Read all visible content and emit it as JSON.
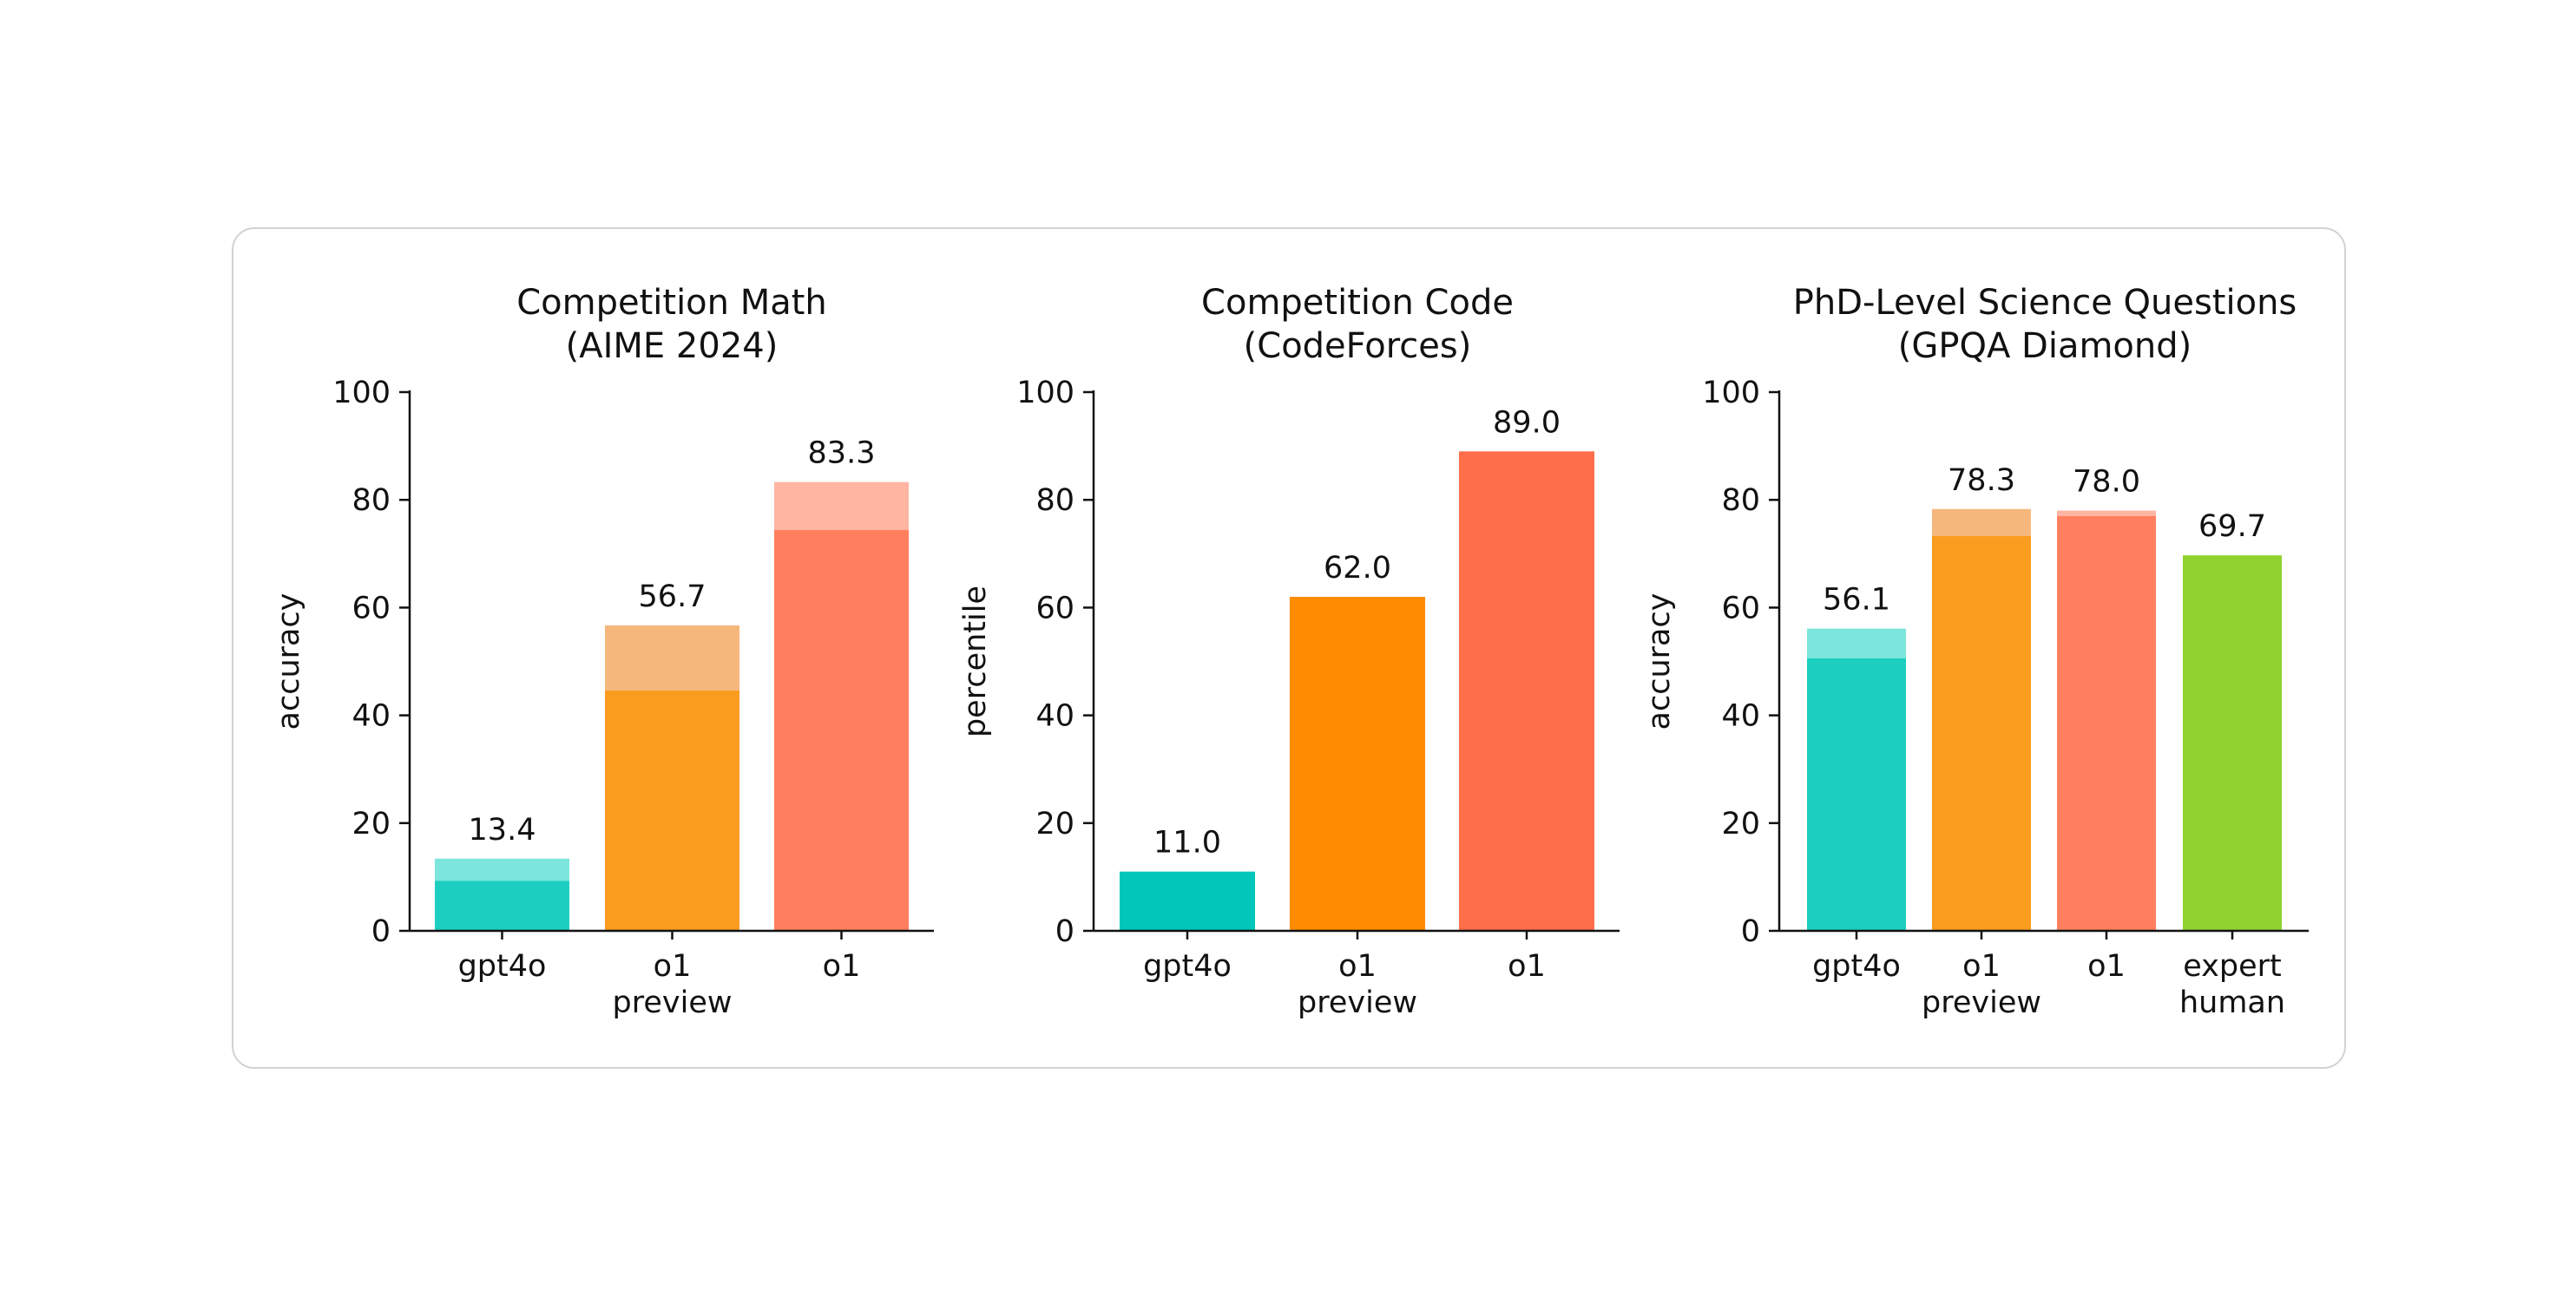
{
  "chart_data": [
    {
      "type": "bar",
      "title": [
        "Competition Math",
        "(AIME 2024)"
      ],
      "ylabel": "accuracy",
      "ylim": [
        0,
        100
      ],
      "yticks": [
        0,
        20,
        40,
        60,
        80,
        100
      ],
      "categories": [
        [
          "gpt4o"
        ],
        [
          "o1",
          "preview"
        ],
        [
          "o1"
        ]
      ],
      "values": [
        13.4,
        56.7,
        83.3
      ],
      "value_labels": [
        "13.4",
        "56.7",
        "83.3"
      ],
      "solid_values": [
        9.3,
        44.6,
        74.4
      ],
      "colors": [
        "#1ccfc0",
        "#fa9c1e",
        "#ff7f5e"
      ],
      "light_colors": [
        "#7de6dc",
        "#f6b77c",
        "#ffb5a2"
      ],
      "grid": false
    },
    {
      "type": "bar",
      "title": [
        "Competition Code",
        "(CodeForces)"
      ],
      "ylabel": "percentile",
      "ylim": [
        0,
        100
      ],
      "yticks": [
        0,
        20,
        40,
        60,
        80,
        100
      ],
      "categories": [
        [
          "gpt4o"
        ],
        [
          "o1",
          "preview"
        ],
        [
          "o1"
        ]
      ],
      "values": [
        11.0,
        62.0,
        89.0
      ],
      "value_labels": [
        "11.0",
        "62.0",
        "89.0"
      ],
      "solid_values": [
        11.0,
        62.0,
        89.0
      ],
      "colors": [
        "#00c7b9",
        "#ff8c00",
        "#ff6e4a"
      ],
      "light_colors": [
        "#00c7b9",
        "#ff8c00",
        "#ff6e4a"
      ],
      "grid": false
    },
    {
      "type": "bar",
      "title": [
        "PhD-Level Science Questions",
        "(GPQA Diamond)"
      ],
      "ylabel": "accuracy",
      "ylim": [
        0,
        100
      ],
      "yticks": [
        0,
        20,
        40,
        60,
        80,
        100
      ],
      "categories": [
        [
          "gpt4o"
        ],
        [
          "o1",
          "preview"
        ],
        [
          "o1"
        ],
        [
          "expert",
          "human"
        ]
      ],
      "values": [
        56.1,
        78.3,
        78.0,
        69.7
      ],
      "value_labels": [
        "56.1",
        "78.3",
        "78.0",
        "69.7"
      ],
      "solid_values": [
        50.6,
        73.3,
        77.0,
        69.7
      ],
      "colors": [
        "#1ccfc0",
        "#fa9c1e",
        "#ff7f5e",
        "#91d22e"
      ],
      "light_colors": [
        "#7de6dc",
        "#f6b77c",
        "#ffb5a2",
        "#91d22e"
      ],
      "grid": false
    }
  ]
}
